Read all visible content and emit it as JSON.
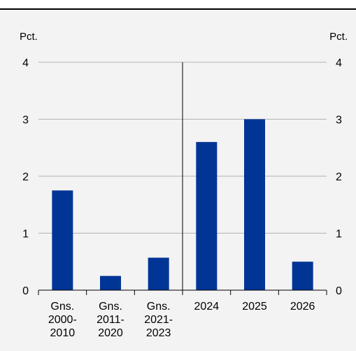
{
  "chart_data": {
    "type": "bar",
    "y_unit_left": "Pct.",
    "y_unit_right": "Pct.",
    "ylim": [
      0,
      4
    ],
    "yticks": [
      0,
      1,
      2,
      3,
      4
    ],
    "grid": true,
    "categories": [
      [
        "Gns.",
        "2000-",
        "2010"
      ],
      [
        "Gns.",
        "2011-",
        "2020"
      ],
      [
        "Gns.",
        "2021-",
        "2023"
      ],
      [
        "2024"
      ],
      [
        "2025"
      ],
      [
        "2026"
      ]
    ],
    "values": [
      1.75,
      0.25,
      0.57,
      2.6,
      3.0,
      0.5
    ],
    "divider_after_index": 2,
    "colors": {
      "bar": "#003595",
      "grid": "#b3b3b3",
      "axis": "#000000",
      "background": "#f3f3f3"
    }
  }
}
